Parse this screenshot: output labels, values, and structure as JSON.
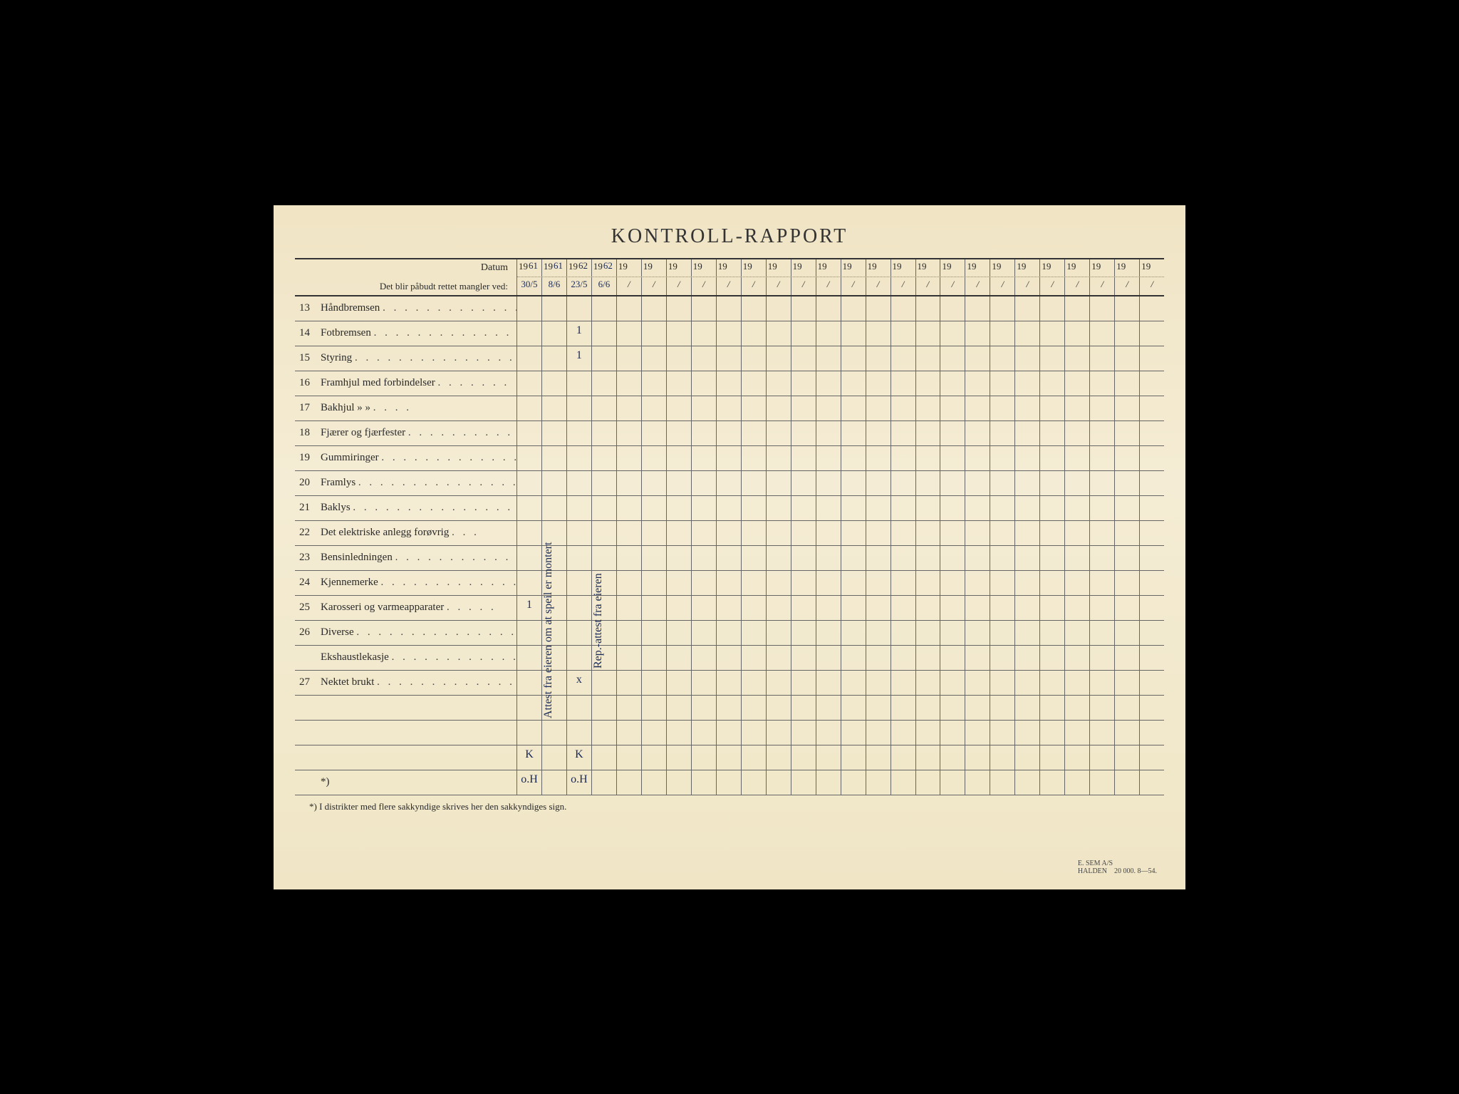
{
  "title": "KONTROLL-RAPPORT",
  "header": {
    "datum_label": "Datum",
    "sub_label": "Det blir påbudt rettet mangler ved:"
  },
  "year_prefix": "19",
  "year_handwritten": [
    "61",
    "61",
    "62",
    "62",
    "",
    "",
    "",
    "",
    "",
    "",
    "",
    "",
    "",
    "",
    "",
    "",
    "",
    "",
    "",
    "",
    "",
    "",
    "",
    "",
    "",
    ""
  ],
  "date_handwritten": [
    "30/5",
    "8/6",
    "23/5",
    "6/6",
    "/",
    "/",
    "/",
    "/",
    "/",
    "/",
    "/",
    "/",
    "/",
    "/",
    "/",
    "/",
    "/",
    "/",
    "/",
    "/",
    "/",
    "/",
    "/",
    "/",
    "/",
    "/"
  ],
  "rows": [
    {
      "num": "13",
      "label": "Håndbremsen"
    },
    {
      "num": "14",
      "label": "Fotbremsen"
    },
    {
      "num": "15",
      "label": "Styring"
    },
    {
      "num": "16",
      "label": "Framhjul med forbindelser"
    },
    {
      "num": "17",
      "label": "Bakhjul        »            »"
    },
    {
      "num": "18",
      "label": "Fjærer og fjærfester"
    },
    {
      "num": "19",
      "label": "Gummiringer"
    },
    {
      "num": "20",
      "label": "Framlys"
    },
    {
      "num": "21",
      "label": "Baklys"
    },
    {
      "num": "22",
      "label": "Det elektriske anlegg forøvrig"
    },
    {
      "num": "23",
      "label": "Bensinledningen"
    },
    {
      "num": "24",
      "label": "Kjennemerke"
    },
    {
      "num": "25",
      "label": "Karosseri og varmeapparater"
    },
    {
      "num": "26",
      "label": "Diverse"
    },
    {
      "num": "",
      "label": "Ekshaustlekasje"
    },
    {
      "num": "27",
      "label": "Nektet brukt"
    },
    {
      "num": "",
      "label": ""
    },
    {
      "num": "",
      "label": ""
    },
    {
      "num": "",
      "label": ""
    },
    {
      "num": "",
      "label": "                                  *)"
    }
  ],
  "cell_marks": {
    "1_2": "1",
    "2_2": "1",
    "12_0": "1",
    "15_2": "x",
    "18_0": "K",
    "18_2": "K",
    "19_0": "o.H",
    "19_2": "o.H"
  },
  "vertical_notes": {
    "col1": "Attest fra eieren om at speil er montert",
    "col3": "Rep.-attest fra eieren"
  },
  "footer": "*)  I distrikter med flere sakkyndige skrives her den sakkyndiges sign.",
  "imprint_line1": "E. SEM A/S",
  "imprint_line2": "HALDEN",
  "imprint_line3": "20 000.   8—54.",
  "colors": {
    "paper": "#f2e8ca",
    "ink": "#2a2a2a",
    "pen": "#1a2a5a",
    "rule": "#555"
  },
  "columns": 26
}
